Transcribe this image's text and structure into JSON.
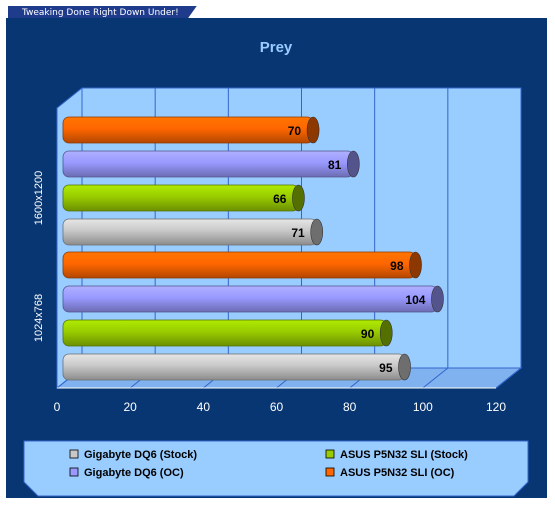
{
  "header": {
    "tagline": "Tweaking Done Right Down Under!"
  },
  "colors": {
    "frame": "#083673",
    "plot_background": "#99ccff",
    "title": "#99ccff",
    "grid": "#3366cc",
    "stock_gigabyte": "#c8c8c8",
    "oc_gigabyte": "#9999ff",
    "stock_asus": "#99cc00",
    "oc_asus": "#ff6600"
  },
  "chart_data": {
    "type": "bar",
    "orientation": "horizontal",
    "style": "3d",
    "title": "Prey",
    "xlabel": "",
    "ylabel": "",
    "categories": [
      "1600x1200",
      "1024x768"
    ],
    "series": [
      {
        "name": "ASUS P5N32 SLI (OC)",
        "color": "#ff6600",
        "values": [
          70,
          98
        ]
      },
      {
        "name": "Gigabyte DQ6 (OC)",
        "color": "#9999ff",
        "values": [
          81,
          104
        ]
      },
      {
        "name": "ASUS P5N32 SLI (Stock)",
        "color": "#99cc00",
        "values": [
          66,
          90
        ]
      },
      {
        "name": "Gigabyte DQ6 (Stock)",
        "color": "#c8c8c8",
        "values": [
          71,
          95
        ]
      }
    ],
    "xlim": [
      0,
      120
    ],
    "xticks": [
      "0",
      "20",
      "40",
      "60",
      "80",
      "100",
      "120"
    ],
    "grid": true,
    "legend": {
      "position": "bottom",
      "entries": [
        {
          "name": "Gigabyte DQ6 (Stock)",
          "color": "#c8c8c8"
        },
        {
          "name": "ASUS P5N32 SLI (Stock)",
          "color": "#99cc00"
        },
        {
          "name": "Gigabyte DQ6 (OC)",
          "color": "#9999ff"
        },
        {
          "name": "ASUS P5N32 SLI (OC)",
          "color": "#ff6600"
        }
      ]
    }
  }
}
